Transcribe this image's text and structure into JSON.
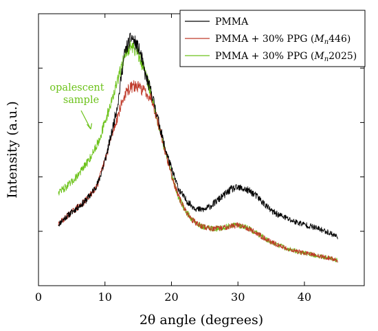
{
  "chart_data": {
    "type": "line",
    "xlabel": "2θ angle (degrees)",
    "ylabel": "Intensity (a.u.)",
    "xlim": [
      0,
      49
    ],
    "ylim": [
      0,
      1
    ],
    "xticks": [
      "0",
      "10",
      "20",
      "30",
      "40"
    ],
    "xtick_values": [
      0,
      10,
      20,
      30,
      40
    ],
    "ytick_values": [
      0.2,
      0.4,
      0.6,
      0.8,
      1.0
    ],
    "ytick_labels_shown": false,
    "grid": false,
    "legend_position": "top-right",
    "series": [
      {
        "name": "PMMA",
        "color": "#000000",
        "x": [
          3,
          4,
          5,
          6,
          7,
          8,
          9,
          10,
          11,
          12,
          12.5,
          13,
          13.5,
          14,
          14.5,
          15,
          15.5,
          16,
          17,
          18,
          19,
          20,
          21,
          22,
          23,
          24,
          25,
          26,
          27,
          28,
          29,
          30,
          31,
          32,
          33,
          34,
          35,
          36,
          37,
          38,
          39,
          40,
          41,
          42,
          43,
          44,
          45
        ],
        "y": [
          0.225,
          0.25,
          0.27,
          0.29,
          0.31,
          0.34,
          0.38,
          0.46,
          0.56,
          0.68,
          0.78,
          0.86,
          0.89,
          0.915,
          0.895,
          0.875,
          0.84,
          0.78,
          0.71,
          0.61,
          0.51,
          0.43,
          0.36,
          0.32,
          0.295,
          0.28,
          0.28,
          0.295,
          0.315,
          0.335,
          0.355,
          0.36,
          0.355,
          0.345,
          0.325,
          0.3,
          0.275,
          0.262,
          0.252,
          0.24,
          0.232,
          0.225,
          0.218,
          0.21,
          0.202,
          0.192,
          0.18
        ]
      },
      {
        "name": "PMMA + 30% PPG (M_n 446)",
        "color": "#bf3a2a",
        "x": [
          3,
          4,
          5,
          6,
          7,
          8,
          9,
          10,
          11,
          12,
          12.5,
          13,
          13.5,
          14,
          14.5,
          15,
          16,
          17,
          18,
          19,
          20,
          21,
          22,
          23,
          24,
          25,
          26,
          27,
          28,
          29,
          30,
          31,
          32,
          33,
          34,
          35,
          36,
          37,
          38,
          39,
          40,
          41,
          42,
          43,
          44,
          45
        ],
        "y": [
          0.225,
          0.25,
          0.27,
          0.29,
          0.31,
          0.34,
          0.38,
          0.46,
          0.55,
          0.63,
          0.67,
          0.7,
          0.72,
          0.73,
          0.735,
          0.73,
          0.715,
          0.69,
          0.6,
          0.5,
          0.41,
          0.33,
          0.28,
          0.245,
          0.225,
          0.215,
          0.21,
          0.21,
          0.215,
          0.22,
          0.222,
          0.218,
          0.205,
          0.19,
          0.175,
          0.16,
          0.15,
          0.14,
          0.132,
          0.125,
          0.12,
          0.115,
          0.11,
          0.105,
          0.1,
          0.093
        ]
      },
      {
        "name": "PMMA + 30% PPG (M_n 2025)",
        "color": "#6cc21a",
        "x": [
          3,
          4,
          5,
          6,
          7,
          8,
          9,
          10,
          11,
          12,
          12.5,
          13,
          13.5,
          14,
          14.5,
          15,
          16,
          17,
          18,
          19,
          20,
          21,
          22,
          23,
          24,
          25,
          26,
          27,
          28,
          29,
          30,
          31,
          32,
          33,
          34,
          35,
          36,
          37,
          38,
          39,
          40,
          41,
          42,
          43,
          44,
          45
        ],
        "y": [
          0.345,
          0.36,
          0.38,
          0.41,
          0.44,
          0.48,
          0.53,
          0.6,
          0.68,
          0.76,
          0.81,
          0.85,
          0.87,
          0.88,
          0.87,
          0.85,
          0.79,
          0.7,
          0.6,
          0.5,
          0.41,
          0.33,
          0.28,
          0.245,
          0.225,
          0.215,
          0.21,
          0.21,
          0.215,
          0.22,
          0.222,
          0.218,
          0.205,
          0.19,
          0.175,
          0.16,
          0.15,
          0.14,
          0.132,
          0.125,
          0.12,
          0.115,
          0.11,
          0.105,
          0.1,
          0.093
        ]
      }
    ],
    "legend": [
      {
        "text": "PMMA",
        "sub": "",
        "num": ""
      },
      {
        "text": "PMMA + 30% PPG (",
        "sub": "n",
        "num": "446)"
      },
      {
        "text": "PMMA + 30% PPG (",
        "sub": "n",
        "num": "2025)"
      }
    ],
    "annotation": {
      "lines": [
        "opalescent",
        "sample"
      ],
      "color": "#6cc21a",
      "points_to": {
        "x": 8.3,
        "y": 0.49
      }
    }
  }
}
